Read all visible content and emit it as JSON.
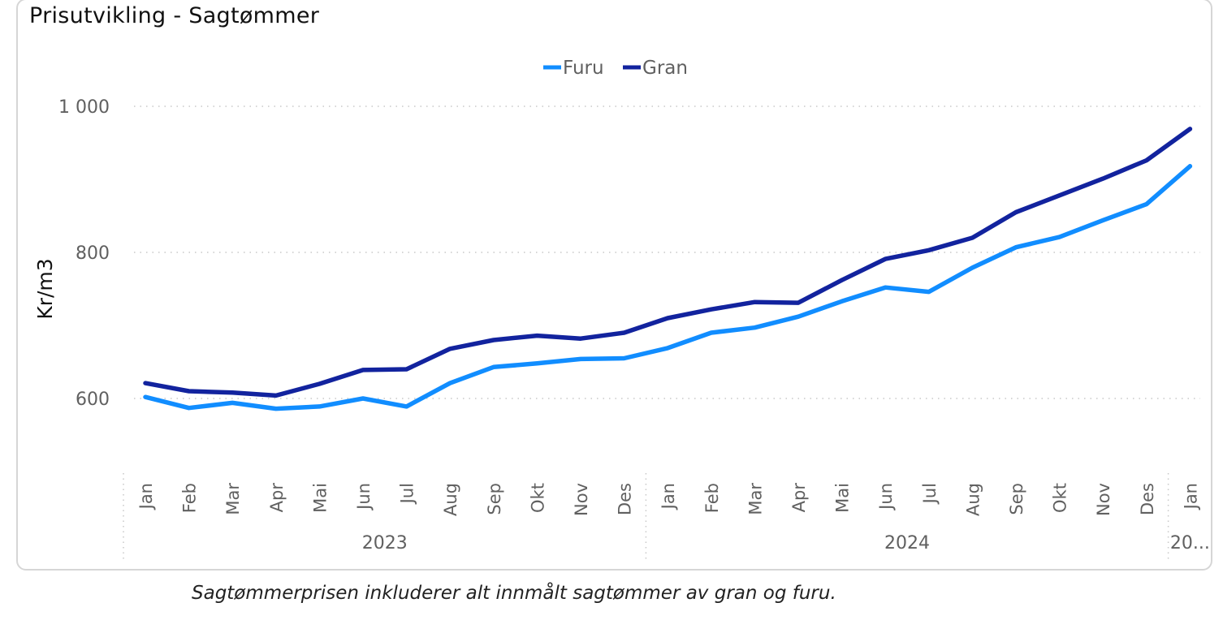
{
  "caption": "Sagtømmerprisen inkluderer alt innmålt sagtømmer av gran og furu.",
  "chart_data": {
    "type": "line",
    "title": "Prisutvikling - Sagtømmer",
    "ylabel": "Kr/m3",
    "xlabel": "",
    "ylim": [
      490,
      1000
    ],
    "yticks": [
      {
        "value": 600,
        "label": "600"
      },
      {
        "value": 800,
        "label": "800"
      },
      {
        "value": 1000,
        "label": "1 000"
      }
    ],
    "grid": true,
    "legend_position": "top-center",
    "categories": [
      "Jan",
      "Feb",
      "Mar",
      "Apr",
      "Mai",
      "Jun",
      "Jul",
      "Aug",
      "Sep",
      "Okt",
      "Nov",
      "Des",
      "Jan",
      "Feb",
      "Mar",
      "Apr",
      "Mai",
      "Jun",
      "Jul",
      "Aug",
      "Sep",
      "Okt",
      "Nov",
      "Des",
      "Jan"
    ],
    "year_groups": [
      {
        "label": "2023",
        "start": 0,
        "count": 12
      },
      {
        "label": "2024",
        "start": 12,
        "count": 12
      },
      {
        "label": "20...",
        "start": 24,
        "count": 1
      }
    ],
    "series": [
      {
        "name": "Furu",
        "color": "#118dff",
        "values": [
          602,
          587,
          594,
          586,
          589,
          600,
          589,
          621,
          643,
          648,
          654,
          655,
          669,
          690,
          697,
          712,
          733,
          752,
          746,
          779,
          807,
          821,
          844,
          866,
          918
        ]
      },
      {
        "name": "Gran",
        "color": "#12239e",
        "values": [
          621,
          610,
          608,
          604,
          620,
          639,
          640,
          668,
          680,
          686,
          682,
          690,
          710,
          722,
          732,
          731,
          762,
          791,
          803,
          820,
          855,
          878,
          901,
          926,
          969
        ]
      }
    ]
  }
}
